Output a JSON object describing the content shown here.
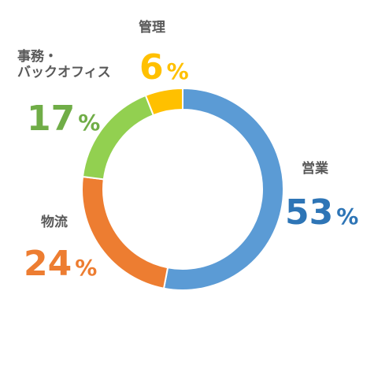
{
  "chart_data": {
    "type": "pie",
    "variant": "donut",
    "categories": [
      "営業",
      "物流",
      "事務・\nバックオフィス",
      "管理"
    ],
    "values": [
      53,
      24,
      17,
      6
    ],
    "unit": "%",
    "colors": [
      "#5B9BD5",
      "#ED7D31",
      "#92D050",
      "#FFC000"
    ],
    "legend": "none",
    "title": ""
  },
  "labels": [
    {
      "name": "営業",
      "value": "53",
      "unit": "%",
      "color": "#2E75B6"
    },
    {
      "name": "物流",
      "value": "24",
      "unit": "%",
      "color": "#ED7D31"
    },
    {
      "name": "事務・\nバックオフィス",
      "value": "17",
      "unit": "%",
      "color": "#70AD47"
    },
    {
      "name": "管理",
      "value": "6",
      "unit": "%",
      "color": "#FFC000"
    }
  ]
}
